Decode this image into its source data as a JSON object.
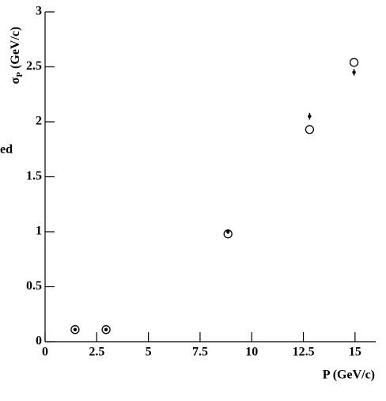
{
  "chart_data": {
    "type": "scatter",
    "side_text": "ed",
    "x_label": "P (GeV/c)",
    "y_label": {
      "symbol": "σ",
      "subscript": "P",
      "unit": "(GeV/c)"
    },
    "xlim": [
      0,
      16
    ],
    "ylim": [
      0,
      3
    ],
    "xticks": [
      0,
      2.5,
      5,
      7.5,
      10,
      12.5,
      15
    ],
    "yticks": [
      0,
      0.5,
      1,
      1.5,
      2,
      2.5,
      3
    ],
    "series": [
      {
        "marker": "filled",
        "color": "#000000",
        "x": [
          1.45,
          2.95,
          8.85,
          12.8,
          14.95
        ],
        "values": [
          0.11,
          0.11,
          1.0,
          2.05,
          2.45
        ],
        "errors": [
          0.01,
          0.01,
          0.02,
          0.03,
          0.03
        ]
      },
      {
        "marker": "open",
        "color": "#000000",
        "x": [
          1.45,
          2.95,
          8.85,
          12.8,
          14.95
        ],
        "values": [
          0.11,
          0.11,
          0.98,
          1.93,
          2.54
        ]
      }
    ]
  }
}
